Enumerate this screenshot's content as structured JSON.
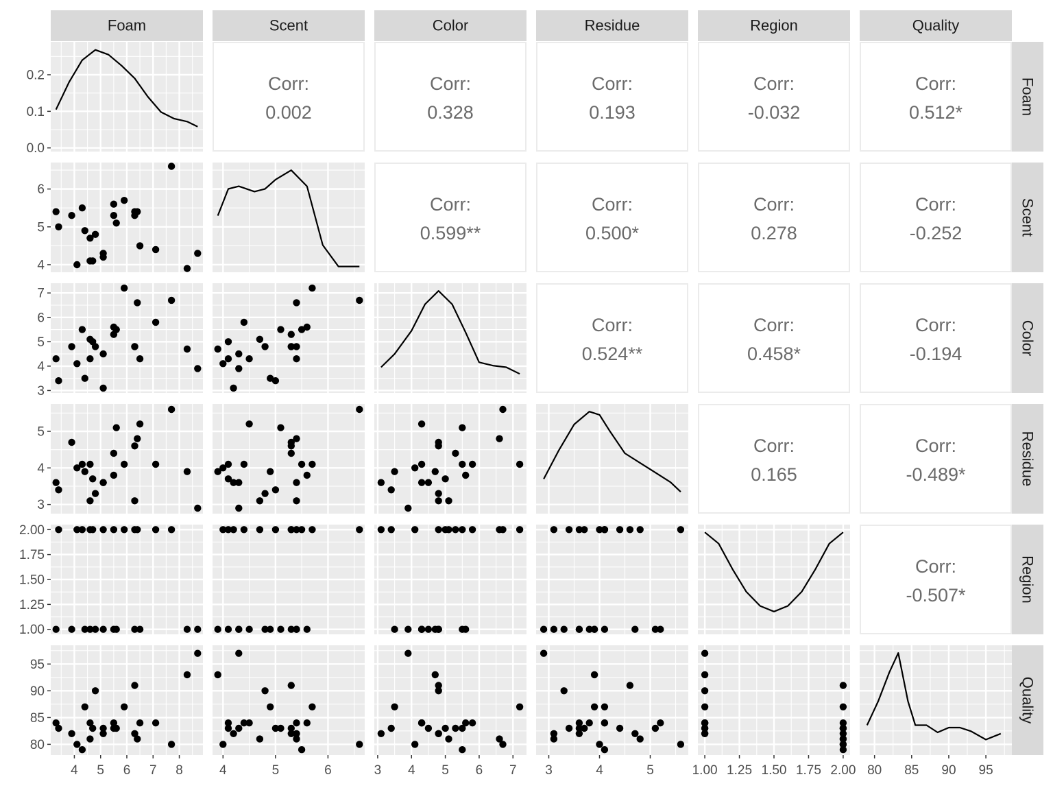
{
  "chart_data": {
    "type": "scatter",
    "variables": [
      "Foam",
      "Scent",
      "Color",
      "Residue",
      "Region",
      "Quality"
    ],
    "axes": {
      "Foam": {
        "range": [
          3.1,
          8.9
        ],
        "ticks": [
          4,
          5,
          6,
          7,
          8
        ],
        "tick_labels": [
          "4",
          "5",
          "6",
          "7",
          "8"
        ]
      },
      "Scent": {
        "range": [
          3.8,
          6.7
        ],
        "ticks": [
          4,
          5,
          6
        ],
        "tick_labels": [
          "4",
          "5",
          "6"
        ]
      },
      "Color": {
        "range": [
          2.9,
          7.4
        ],
        "ticks": [
          3,
          4,
          5,
          6,
          7
        ],
        "tick_labels": [
          "3",
          "4",
          "5",
          "6",
          "7"
        ]
      },
      "Residue": {
        "range": [
          2.75,
          5.75
        ],
        "ticks": [
          3,
          4,
          5
        ],
        "tick_labels": [
          "3",
          "4",
          "5"
        ]
      },
      "Region": {
        "range": [
          0.95,
          2.05
        ],
        "ticks": [
          1.0,
          1.25,
          1.5,
          1.75,
          2.0
        ],
        "tick_labels": [
          "1.00",
          "1.25",
          "1.50",
          "1.75",
          "2.00"
        ]
      },
      "Quality": {
        "range": [
          78,
          98.5
        ],
        "ticks": [
          80,
          85,
          90,
          95
        ],
        "tick_labels": [
          "80",
          "85",
          "90",
          "95"
        ]
      }
    },
    "density_y_axis": {
      "range": [
        -0.01,
        0.29
      ],
      "ticks": [
        0.0,
        0.1,
        0.2
      ],
      "tick_labels": [
        "0.0",
        "0.1",
        "0.2"
      ]
    },
    "observations": [
      {
        "Foam": 3.3,
        "Scent": 5.4,
        "Color": 4.3,
        "Residue": 3.6,
        "Region": 1,
        "Quality": 84
      },
      {
        "Foam": 3.4,
        "Scent": 5.0,
        "Color": 3.4,
        "Residue": 3.4,
        "Region": 2,
        "Quality": 83
      },
      {
        "Foam": 3.9,
        "Scent": 5.3,
        "Color": 4.8,
        "Residue": 4.7,
        "Region": 1,
        "Quality": 82
      },
      {
        "Foam": 4.1,
        "Scent": 4.0,
        "Color": 4.1,
        "Residue": 4.0,
        "Region": 2,
        "Quality": 80
      },
      {
        "Foam": 4.3,
        "Scent": 5.5,
        "Color": 5.5,
        "Residue": 4.1,
        "Region": 2,
        "Quality": 79
      },
      {
        "Foam": 4.4,
        "Scent": 4.9,
        "Color": 3.5,
        "Residue": 3.9,
        "Region": 1,
        "Quality": 87
      },
      {
        "Foam": 4.6,
        "Scent": 4.7,
        "Color": 5.1,
        "Residue": 3.1,
        "Region": 2,
        "Quality": 81
      },
      {
        "Foam": 4.6,
        "Scent": 4.1,
        "Color": 4.3,
        "Residue": 4.1,
        "Region": 1,
        "Quality": 84
      },
      {
        "Foam": 4.7,
        "Scent": 4.1,
        "Color": 5.0,
        "Residue": 3.7,
        "Region": 2,
        "Quality": 83
      },
      {
        "Foam": 4.8,
        "Scent": 4.8,
        "Color": 4.8,
        "Residue": 3.3,
        "Region": 1,
        "Quality": 90
      },
      {
        "Foam": 5.1,
        "Scent": 4.3,
        "Color": 4.5,
        "Residue": 3.6,
        "Region": 1,
        "Quality": 83
      },
      {
        "Foam": 5.1,
        "Scent": 4.2,
        "Color": 3.1,
        "Residue": 3.6,
        "Region": 2,
        "Quality": 82
      },
      {
        "Foam": 5.5,
        "Scent": 5.6,
        "Color": 5.6,
        "Residue": 3.8,
        "Region": 1,
        "Quality": 84
      },
      {
        "Foam": 5.5,
        "Scent": 5.3,
        "Color": 5.3,
        "Residue": 4.4,
        "Region": 2,
        "Quality": 83
      },
      {
        "Foam": 5.6,
        "Scent": 5.1,
        "Color": 5.5,
        "Residue": 5.1,
        "Region": 1,
        "Quality": 83
      },
      {
        "Foam": 5.9,
        "Scent": 5.7,
        "Color": 7.2,
        "Residue": 4.1,
        "Region": 2,
        "Quality": 87
      },
      {
        "Foam": 6.3,
        "Scent": 5.3,
        "Color": 4.8,
        "Residue": 4.6,
        "Region": 2,
        "Quality": 91
      },
      {
        "Foam": 6.3,
        "Scent": 5.4,
        "Color": 4.8,
        "Residue": 3.1,
        "Region": 1,
        "Quality": 82
      },
      {
        "Foam": 6.4,
        "Scent": 5.4,
        "Color": 6.6,
        "Residue": 4.8,
        "Region": 2,
        "Quality": 81
      },
      {
        "Foam": 6.5,
        "Scent": 4.5,
        "Color": 4.3,
        "Residue": 5.2,
        "Region": 1,
        "Quality": 84
      },
      {
        "Foam": 7.1,
        "Scent": 4.4,
        "Color": 5.8,
        "Residue": 4.1,
        "Region": 2,
        "Quality": 84
      },
      {
        "Foam": 7.7,
        "Scent": 6.6,
        "Color": 6.7,
        "Residue": 5.6,
        "Region": 2,
        "Quality": 80
      },
      {
        "Foam": 8.3,
        "Scent": 3.9,
        "Color": 4.7,
        "Residue": 3.9,
        "Region": 1,
        "Quality": 93
      },
      {
        "Foam": 8.7,
        "Scent": 4.3,
        "Color": 3.9,
        "Residue": 2.9,
        "Region": 1,
        "Quality": 97
      }
    ],
    "densities": {
      "Foam": {
        "x": [
          3.3,
          3.8,
          4.3,
          4.8,
          5.3,
          5.8,
          6.3,
          6.8,
          7.3,
          7.8,
          8.3,
          8.7
        ],
        "y": [
          0.105,
          0.18,
          0.24,
          0.268,
          0.255,
          0.225,
          0.19,
          0.14,
          0.098,
          0.08,
          0.072,
          0.058
        ]
      },
      "Scent": {
        "x": [
          3.9,
          4.1,
          4.3,
          4.6,
          4.8,
          5.0,
          5.3,
          5.6,
          5.9,
          6.2,
          6.6
        ],
        "y": [
          0.38,
          0.58,
          0.6,
          0.56,
          0.58,
          0.65,
          0.72,
          0.6,
          0.16,
          0.0,
          0.0
        ]
      },
      "Color": {
        "x": [
          3.1,
          3.5,
          4.0,
          4.4,
          4.8,
          5.2,
          5.6,
          6.0,
          6.4,
          6.8,
          7.2
        ],
        "y": [
          0.12,
          0.2,
          0.34,
          0.5,
          0.58,
          0.5,
          0.33,
          0.15,
          0.13,
          0.12,
          0.08
        ]
      },
      "Residue": {
        "x": [
          2.9,
          3.2,
          3.5,
          3.8,
          4.0,
          4.2,
          4.5,
          4.8,
          5.1,
          5.4,
          5.6
        ],
        "y": [
          0.18,
          0.36,
          0.52,
          0.6,
          0.58,
          0.48,
          0.34,
          0.28,
          0.22,
          0.16,
          0.1
        ]
      },
      "Region": {
        "x": [
          1.0,
          1.1,
          1.2,
          1.3,
          1.4,
          1.5,
          1.6,
          1.7,
          1.8,
          1.9,
          2.0
        ],
        "y": [
          0.68,
          0.6,
          0.42,
          0.26,
          0.16,
          0.12,
          0.16,
          0.26,
          0.42,
          0.6,
          0.68
        ]
      },
      "Quality": {
        "x": [
          79,
          80.5,
          82,
          83.2,
          84.5,
          85.5,
          87,
          88.5,
          90,
          91.5,
          93,
          95,
          97
        ],
        "y": [
          0.1,
          0.2,
          0.32,
          0.4,
          0.2,
          0.1,
          0.1,
          0.07,
          0.09,
          0.09,
          0.075,
          0.04,
          0.065
        ]
      }
    },
    "correlations": {
      "Foam-Scent": "0.002",
      "Foam-Color": "0.328",
      "Foam-Residue": "0.193",
      "Foam-Region": "-0.032",
      "Foam-Quality": "0.512*",
      "Scent-Color": "0.599**",
      "Scent-Residue": "0.500*",
      "Scent-Region": "0.278",
      "Scent-Quality": "-0.252",
      "Color-Residue": "0.524**",
      "Color-Region": "0.458*",
      "Color-Quality": "-0.194",
      "Residue-Region": "0.165",
      "Residue-Quality": "-0.489*",
      "Region-Quality": "-0.507*"
    },
    "corr_label": "Corr:",
    "grid": true
  }
}
